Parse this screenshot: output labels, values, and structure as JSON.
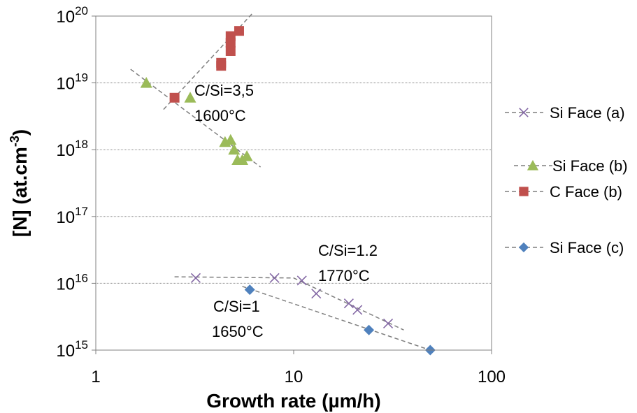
{
  "chart_data": {
    "type": "scatter",
    "xscale": "log",
    "yscale": "log",
    "xlim": [
      1,
      100
    ],
    "ylim": [
      1000000000000000.0,
      1e+20
    ],
    "xlabel": "Growth rate (µm/h)",
    "ylabel_parts": {
      "pre": "[N] (at.cm",
      "sup": "-3",
      "post": ")"
    },
    "x_ticks": [
      {
        "value": 1,
        "label": "1"
      },
      {
        "value": 10,
        "label": "10"
      },
      {
        "value": 100,
        "label": "100"
      }
    ],
    "y_ticks": [
      {
        "value": 1000000000000000.0,
        "base": "10",
        "exp": "15"
      },
      {
        "value": 1e+16,
        "base": "10",
        "exp": "16"
      },
      {
        "value": 1e+17,
        "base": "10",
        "exp": "17"
      },
      {
        "value": 1e+18,
        "base": "10",
        "exp": "18"
      },
      {
        "value": 1e+19,
        "base": "10",
        "exp": "19"
      },
      {
        "value": 1e+20,
        "base": "10",
        "exp": "20"
      }
    ],
    "grid": {
      "horizontal": true,
      "vertical": false
    },
    "legend_position": "right",
    "series": [
      {
        "name": "Si Face (a)",
        "marker": "x",
        "color": "#8064A2",
        "points": [
          [
            3.2,
            1.2e+16
          ],
          [
            8,
            1.2e+16
          ],
          [
            11,
            1.1e+16
          ],
          [
            13,
            7000000000000000.0
          ],
          [
            19,
            5000000000000000.0
          ],
          [
            21,
            4000000000000000.0
          ],
          [
            30,
            2500000000000000.0
          ]
        ],
        "trend": [
          [
            2.5,
            1.25e+16
          ],
          [
            10,
            1.2e+16
          ],
          [
            36,
            2000000000000000.0
          ]
        ]
      },
      {
        "name": "Si Face (b)",
        "marker": "triangle",
        "color": "#9BBB59",
        "points": [
          [
            1.8,
            1e+19
          ],
          [
            3,
            6e+18
          ],
          [
            4.5,
            1.3e+18
          ],
          [
            4.8,
            1.4e+18
          ],
          [
            5,
            1e+18
          ],
          [
            5.2,
            7e+17
          ],
          [
            5.5,
            7e+17
          ],
          [
            5.8,
            8e+17
          ]
        ],
        "trend": [
          [
            1.5,
            1.6e+19
          ],
          [
            6.8,
            5.5e+17
          ]
        ]
      },
      {
        "name": "C Face (b)",
        "marker": "square",
        "color": "#C0504D",
        "points": [
          [
            2.5,
            6e+18
          ],
          [
            4.3,
            2e+19
          ],
          [
            4.3,
            1.8e+19
          ],
          [
            4.8,
            3e+19
          ],
          [
            4.8,
            4e+19
          ],
          [
            4.8,
            5e+19
          ],
          [
            5.3,
            6e+19
          ]
        ],
        "trend": [
          [
            2.2,
            4e+18
          ],
          [
            6.2,
            1.1e+20
          ]
        ]
      },
      {
        "name": "Si Face (c)",
        "marker": "diamond",
        "color": "#4F81BD",
        "points": [
          [
            6,
            8000000000000000.0
          ],
          [
            24,
            2000000000000000.0
          ],
          [
            49,
            1000000000000000.0
          ]
        ],
        "trend": [
          [
            5.5,
            9000000000000000.0
          ],
          [
            49,
            1000000000000000.0
          ]
        ]
      }
    ],
    "annotations": [
      {
        "lines": [
          "C/Si=3,5",
          "1600°C"
        ]
      },
      {
        "lines": [
          "C/Si=1.2",
          "1770°C"
        ]
      },
      {
        "lines": [
          "C/Si=1",
          "1650°C"
        ]
      }
    ]
  }
}
